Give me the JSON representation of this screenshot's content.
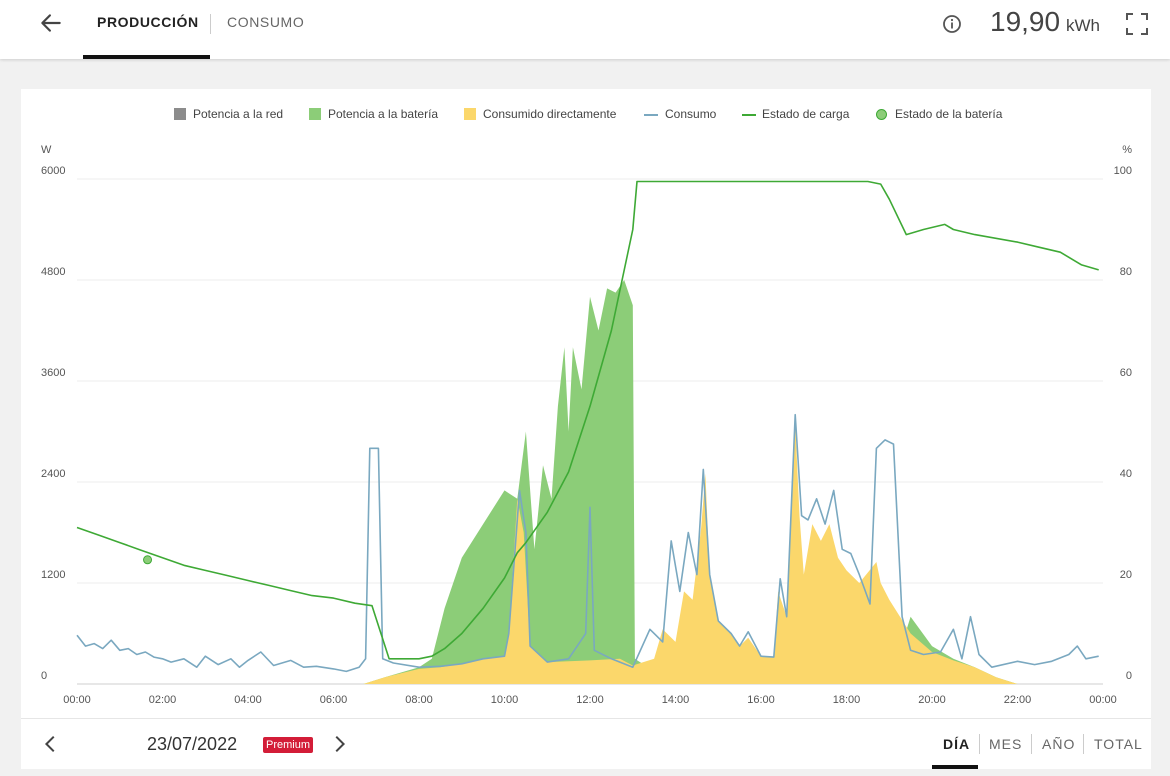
{
  "header": {
    "tabs": [
      {
        "label": "PRODUCCIÓN",
        "active": true
      },
      {
        "label": "CONSUMO",
        "active": false
      }
    ],
    "total_value": "19,90",
    "total_unit": "kWh",
    "icons": {
      "back": "arrow-left-icon",
      "info": "info-icon",
      "fullscreen": "fullscreen-icon"
    }
  },
  "footer": {
    "date": "23/07/2022",
    "badge": "Premium",
    "periods": [
      {
        "label": "DÍA",
        "active": true
      },
      {
        "label": "MES",
        "active": false
      },
      {
        "label": "AÑO",
        "active": false
      },
      {
        "label": "TOTAL",
        "active": false
      }
    ]
  },
  "colors": {
    "red": "#8c8c8c",
    "battery": "#8ccd78",
    "direct": "#fbd76b",
    "consumption": "#7aa8c0",
    "soc": "#3ea935",
    "badge": "#d31d38"
  },
  "chart_data": {
    "type": "area",
    "title": "",
    "legend": [
      "Potencia a la red",
      "Potencia a la batería",
      "Consumido directamente",
      "Consumo",
      "Estado de carga",
      "Estado de la batería"
    ],
    "legend_position": "top",
    "left_axis": {
      "unit": "W",
      "min": 0,
      "max": 6000,
      "ticks": [
        0,
        1200,
        2400,
        3600,
        4800,
        6000
      ]
    },
    "right_axis": {
      "unit": "%",
      "min": 0,
      "max": 100,
      "ticks": [
        0,
        20,
        40,
        60,
        80,
        100
      ]
    },
    "x_axis": {
      "min": 0,
      "max": 24,
      "ticks": [
        "00:00",
        "02:00",
        "04:00",
        "06:00",
        "08:00",
        "10:00",
        "12:00",
        "14:00",
        "16:00",
        "18:00",
        "20:00",
        "22:00",
        "00:00"
      ]
    },
    "grid": true,
    "series": [
      {
        "name": "Consumido directamente",
        "kind": "area",
        "points": [
          [
            0,
            0
          ],
          [
            6.7,
            0
          ],
          [
            7.2,
            80
          ],
          [
            8,
            180
          ],
          [
            8.5,
            200
          ],
          [
            9,
            240
          ],
          [
            9.5,
            300
          ],
          [
            10,
            330
          ],
          [
            10.1,
            600
          ],
          [
            10.3,
            2200
          ],
          [
            10.45,
            1800
          ],
          [
            10.6,
            450
          ],
          [
            11,
            260
          ],
          [
            12,
            280
          ],
          [
            12.7,
            300
          ],
          [
            13,
            220
          ],
          [
            13.5,
            300
          ],
          [
            13.7,
            650
          ],
          [
            14,
            500
          ],
          [
            14.2,
            1100
          ],
          [
            14.4,
            1000
          ],
          [
            14.6,
            1850
          ],
          [
            14.7,
            2500
          ],
          [
            14.8,
            1300
          ],
          [
            15,
            750
          ],
          [
            15.3,
            600
          ],
          [
            15.5,
            450
          ],
          [
            15.7,
            550
          ],
          [
            16,
            330
          ],
          [
            16.3,
            320
          ],
          [
            16.4,
            1100
          ],
          [
            16.6,
            800
          ],
          [
            16.8,
            3100
          ],
          [
            16.9,
            2000
          ],
          [
            17,
            1300
          ],
          [
            17.2,
            1900
          ],
          [
            17.4,
            1700
          ],
          [
            17.6,
            1900
          ],
          [
            17.8,
            1500
          ],
          [
            18.0,
            1350
          ],
          [
            18.3,
            1200
          ],
          [
            18.7,
            1450
          ],
          [
            18.8,
            1200
          ],
          [
            19,
            1000
          ],
          [
            19.5,
            600
          ],
          [
            20,
            380
          ],
          [
            20.5,
            280
          ],
          [
            21,
            200
          ],
          [
            21.5,
            80
          ],
          [
            22,
            0
          ],
          [
            24,
            0
          ]
        ]
      },
      {
        "name": "Potencia a la batería",
        "kind": "area",
        "points": [
          [
            0,
            0
          ],
          [
            6.7,
            0
          ],
          [
            7.2,
            80
          ],
          [
            8,
            200
          ],
          [
            8.3,
            300
          ],
          [
            8.6,
            900
          ],
          [
            9,
            1500
          ],
          [
            9.5,
            1900
          ],
          [
            10,
            2300
          ],
          [
            10.3,
            2200
          ],
          [
            10.5,
            3000
          ],
          [
            10.7,
            1600
          ],
          [
            10.9,
            2600
          ],
          [
            11.1,
            2200
          ],
          [
            11.25,
            3300
          ],
          [
            11.4,
            4000
          ],
          [
            11.5,
            3000
          ],
          [
            11.6,
            4000
          ],
          [
            11.8,
            3500
          ],
          [
            12,
            4600
          ],
          [
            12.2,
            4200
          ],
          [
            12.4,
            4700
          ],
          [
            12.6,
            4650
          ],
          [
            12.8,
            4800
          ],
          [
            13,
            4500
          ],
          [
            13.05,
            300
          ],
          [
            13.2,
            250
          ],
          [
            14,
            0
          ],
          [
            19,
            0
          ],
          [
            19.5,
            800
          ],
          [
            20,
            450
          ],
          [
            20.5,
            300
          ],
          [
            21,
            200
          ],
          [
            21.5,
            80
          ],
          [
            22,
            0
          ],
          [
            24,
            0
          ]
        ]
      },
      {
        "name": "Consumo",
        "kind": "line",
        "points": [
          [
            0,
            580
          ],
          [
            0.2,
            450
          ],
          [
            0.4,
            480
          ],
          [
            0.6,
            420
          ],
          [
            0.8,
            520
          ],
          [
            1.0,
            400
          ],
          [
            1.2,
            420
          ],
          [
            1.4,
            350
          ],
          [
            1.6,
            380
          ],
          [
            1.8,
            320
          ],
          [
            2.0,
            300
          ],
          [
            2.2,
            260
          ],
          [
            2.5,
            300
          ],
          [
            2.8,
            200
          ],
          [
            3.0,
            330
          ],
          [
            3.3,
            230
          ],
          [
            3.6,
            300
          ],
          [
            3.8,
            200
          ],
          [
            4.0,
            280
          ],
          [
            4.3,
            380
          ],
          [
            4.6,
            220
          ],
          [
            5.0,
            280
          ],
          [
            5.3,
            200
          ],
          [
            5.6,
            210
          ],
          [
            6.0,
            180
          ],
          [
            6.3,
            150
          ],
          [
            6.6,
            200
          ],
          [
            6.75,
            300
          ],
          [
            6.85,
            2800
          ],
          [
            7.05,
            2800
          ],
          [
            7.15,
            300
          ],
          [
            7.4,
            250
          ],
          [
            8,
            200
          ],
          [
            8.5,
            210
          ],
          [
            9,
            240
          ],
          [
            9.5,
            300
          ],
          [
            10,
            330
          ],
          [
            10.1,
            600
          ],
          [
            10.35,
            2300
          ],
          [
            10.5,
            1800
          ],
          [
            10.6,
            450
          ],
          [
            11,
            260
          ],
          [
            11.5,
            300
          ],
          [
            11.9,
            600
          ],
          [
            12.0,
            2100
          ],
          [
            12.1,
            400
          ],
          [
            12.5,
            300
          ],
          [
            13,
            200
          ],
          [
            13.4,
            650
          ],
          [
            13.7,
            500
          ],
          [
            13.9,
            1700
          ],
          [
            14.1,
            1100
          ],
          [
            14.3,
            1800
          ],
          [
            14.5,
            1300
          ],
          [
            14.65,
            2550
          ],
          [
            14.8,
            1300
          ],
          [
            15,
            750
          ],
          [
            15.3,
            600
          ],
          [
            15.5,
            450
          ],
          [
            15.7,
            620
          ],
          [
            16,
            330
          ],
          [
            16.3,
            320
          ],
          [
            16.45,
            1250
          ],
          [
            16.6,
            800
          ],
          [
            16.8,
            3200
          ],
          [
            16.95,
            2000
          ],
          [
            17.1,
            1950
          ],
          [
            17.3,
            2200
          ],
          [
            17.5,
            1900
          ],
          [
            17.7,
            2300
          ],
          [
            17.9,
            1600
          ],
          [
            18.1,
            1550
          ],
          [
            18.3,
            1300
          ],
          [
            18.55,
            950
          ],
          [
            18.7,
            2800
          ],
          [
            18.9,
            2900
          ],
          [
            19.1,
            2850
          ],
          [
            19.3,
            800
          ],
          [
            19.5,
            400
          ],
          [
            19.8,
            350
          ],
          [
            20.2,
            380
          ],
          [
            20.5,
            650
          ],
          [
            20.7,
            300
          ],
          [
            20.9,
            800
          ],
          [
            21.1,
            350
          ],
          [
            21.4,
            200
          ],
          [
            22,
            270
          ],
          [
            22.4,
            230
          ],
          [
            22.8,
            270
          ],
          [
            23.2,
            350
          ],
          [
            23.4,
            450
          ],
          [
            23.6,
            300
          ],
          [
            23.9,
            330
          ]
        ]
      },
      {
        "name": "Estado de carga",
        "kind": "line",
        "axis": "right",
        "points": [
          [
            0,
            31
          ],
          [
            0.5,
            29.5
          ],
          [
            1,
            28
          ],
          [
            1.5,
            26.5
          ],
          [
            2,
            25
          ],
          [
            2.5,
            23.5
          ],
          [
            3,
            22.5
          ],
          [
            3.5,
            21.5
          ],
          [
            4,
            20.5
          ],
          [
            4.5,
            19.5
          ],
          [
            5,
            18.5
          ],
          [
            5.5,
            17.5
          ],
          [
            6,
            17
          ],
          [
            6.5,
            16
          ],
          [
            6.9,
            15.5
          ],
          [
            7.3,
            5
          ],
          [
            8,
            5
          ],
          [
            8.3,
            5.5
          ],
          [
            8.6,
            7
          ],
          [
            9,
            10
          ],
          [
            9.5,
            15
          ],
          [
            10,
            21
          ],
          [
            10.3,
            26
          ],
          [
            10.5,
            28
          ],
          [
            11,
            34
          ],
          [
            11.5,
            42
          ],
          [
            12,
            55
          ],
          [
            12.5,
            70
          ],
          [
            13,
            90
          ],
          [
            13.1,
            99.5
          ],
          [
            18.5,
            99.5
          ],
          [
            18.8,
            99
          ],
          [
            19,
            96
          ],
          [
            19.4,
            89
          ],
          [
            19.8,
            90
          ],
          [
            20.3,
            91
          ],
          [
            20.5,
            90
          ],
          [
            21,
            89
          ],
          [
            22,
            87.5
          ],
          [
            22.5,
            86.5
          ],
          [
            23,
            85.5
          ],
          [
            23.5,
            83
          ],
          [
            23.9,
            82
          ]
        ]
      },
      {
        "name": "Estado de la batería",
        "kind": "marker",
        "axis": "right",
        "points": [
          [
            1.65,
            24.6
          ]
        ]
      },
      {
        "name": "Potencia a la red",
        "kind": "area",
        "points": []
      }
    ]
  }
}
